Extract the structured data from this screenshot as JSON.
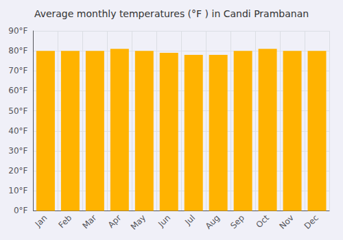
{
  "chart_data": {
    "type": "bar",
    "title": "Average monthly temperatures (°F ) in Candi Prambanan",
    "categories": [
      "Jan",
      "Feb",
      "Mar",
      "Apr",
      "May",
      "Jun",
      "Jul",
      "Aug",
      "Sep",
      "Oct",
      "Nov",
      "Dec"
    ],
    "values": [
      80,
      80,
      80,
      81,
      80,
      79,
      78,
      78,
      80,
      81,
      80,
      80
    ],
    "color": "#FFB300",
    "ylim": [
      0,
      90
    ],
    "yticks": [
      {
        "value": 0,
        "label": "0°F"
      },
      {
        "value": 10,
        "label": "10°F"
      },
      {
        "value": 20,
        "label": "20°F"
      },
      {
        "value": 30,
        "label": "30°F"
      },
      {
        "value": 40,
        "label": "40°F"
      },
      {
        "value": 50,
        "label": "50°F"
      },
      {
        "value": 60,
        "label": "60°F"
      },
      {
        "value": 70,
        "label": "70°F"
      },
      {
        "value": 80,
        "label": "80°F"
      },
      {
        "value": 90,
        "label": "90°F"
      }
    ],
    "grid": true
  }
}
